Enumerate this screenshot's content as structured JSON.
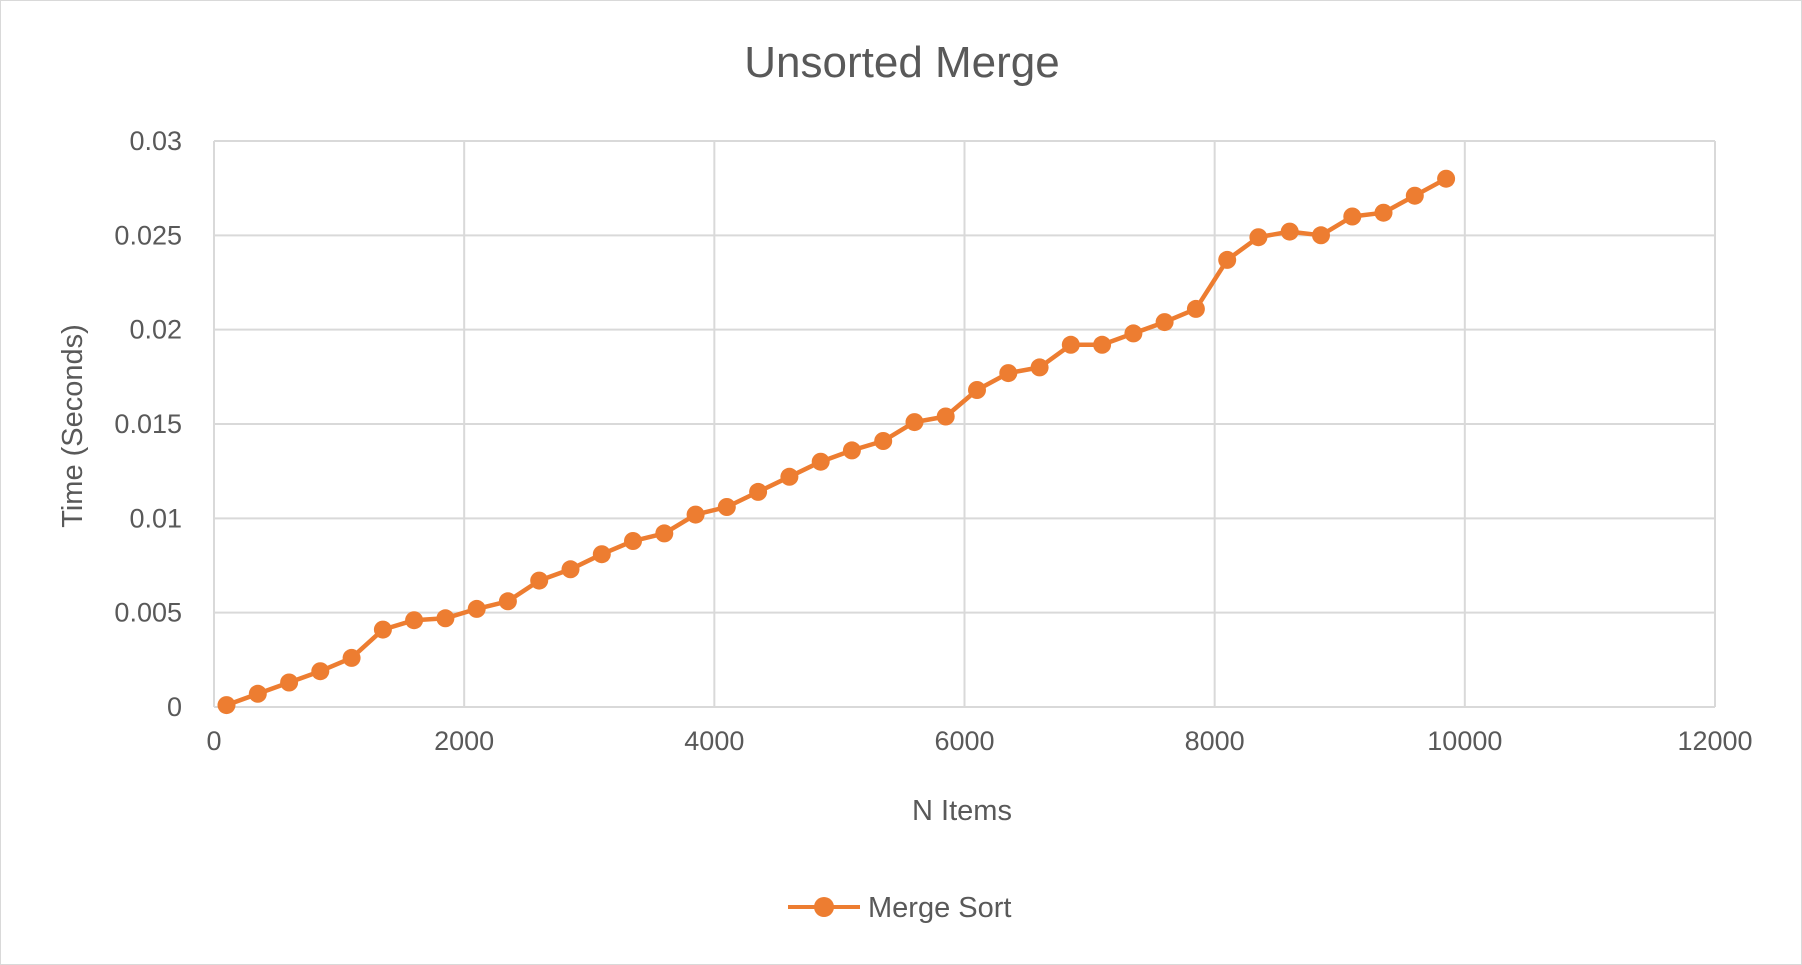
{
  "chart_data": {
    "type": "line",
    "title": "Unsorted Merge",
    "xlabel": "N Items",
    "ylabel": "Time (Seconds)",
    "xlim": [
      0,
      12000
    ],
    "ylim": [
      0,
      0.03
    ],
    "x_ticks": [
      "0",
      "2000",
      "4000",
      "6000",
      "8000",
      "10000",
      "12000"
    ],
    "y_ticks": [
      "0",
      "0.005",
      "0.01",
      "0.015",
      "0.02",
      "0.025",
      "0.03"
    ],
    "grid": true,
    "legend_position": "bottom",
    "series": [
      {
        "name": "Merge Sort",
        "color": "#ED7D31",
        "marker": "circle",
        "x": [
          100,
          350,
          600,
          850,
          1100,
          1350,
          1600,
          1850,
          2100,
          2350,
          2600,
          2850,
          3100,
          3350,
          3600,
          3850,
          4100,
          4350,
          4600,
          4850,
          5100,
          5350,
          5600,
          5850,
          6100,
          6350,
          6600,
          6850,
          7100,
          7350,
          7600,
          7850,
          8100,
          8350,
          8600,
          8850,
          9100,
          9350,
          9600,
          9850
        ],
        "y": [
          0.0001,
          0.0007,
          0.0013,
          0.0019,
          0.0026,
          0.0041,
          0.0046,
          0.0047,
          0.0052,
          0.0056,
          0.0067,
          0.0073,
          0.0081,
          0.0088,
          0.0092,
          0.0102,
          0.0106,
          0.0114,
          0.0122,
          0.013,
          0.0136,
          0.0141,
          0.0151,
          0.0154,
          0.0168,
          0.0177,
          0.018,
          0.0192,
          0.0192,
          0.0198,
          0.0204,
          0.0211,
          0.0237,
          0.0249,
          0.0252,
          0.025,
          0.026,
          0.0262,
          0.0271,
          0.028
        ]
      }
    ]
  }
}
